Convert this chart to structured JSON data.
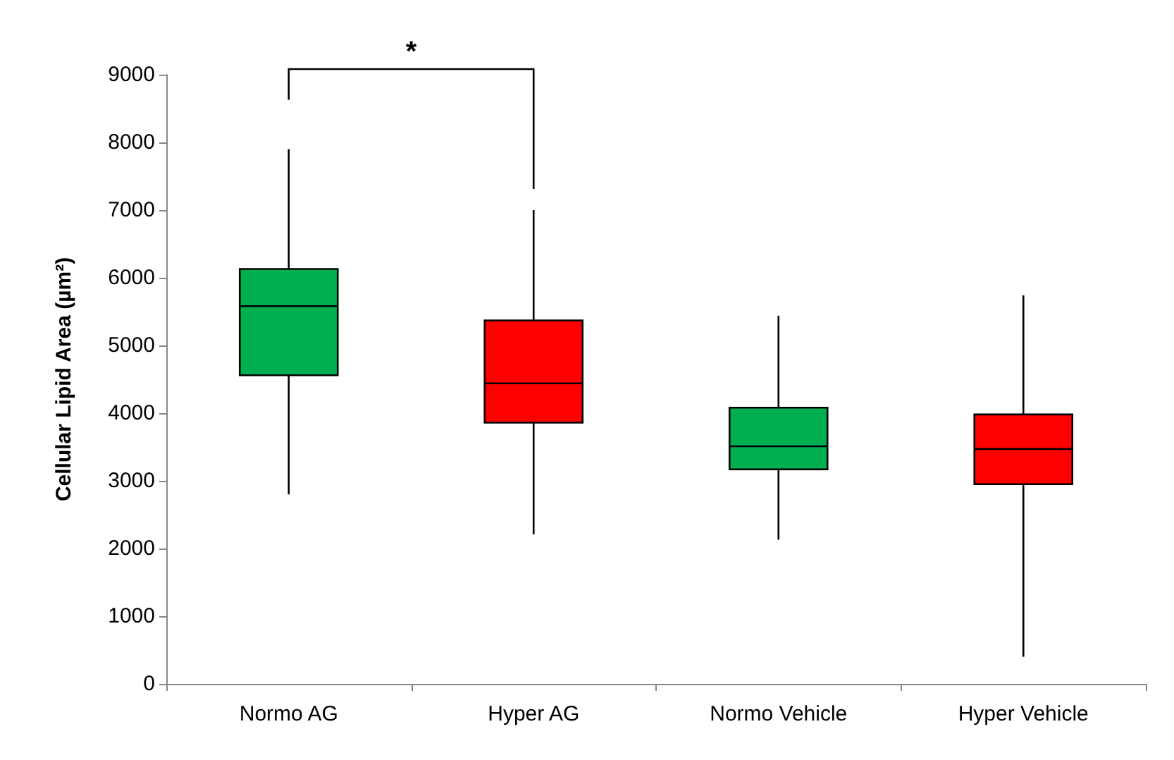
{
  "chart_data": {
    "type": "box",
    "ylabel": "Cellular Lipid Area (µm²)",
    "categories": [
      "Normo AG",
      "Hyper AG",
      "Normo Vehicle",
      "Hyper Vehicle"
    ],
    "colors": [
      "#00b050",
      "#ff0000",
      "#00b050",
      "#ff0000"
    ],
    "boxes": [
      {
        "low": 2800,
        "q1": 4560,
        "median": 5580,
        "q3": 6130,
        "high": 7900
      },
      {
        "low": 2210,
        "q1": 3860,
        "median": 4440,
        "q3": 5370,
        "high": 7000
      },
      {
        "low": 2130,
        "q1": 3170,
        "median": 3510,
        "q3": 4080,
        "high": 5440
      },
      {
        "low": 400,
        "q1": 2950,
        "median": 3470,
        "q3": 3980,
        "high": 5740
      }
    ],
    "ylim": [
      0,
      9000
    ],
    "yticks": [
      0,
      1000,
      2000,
      3000,
      4000,
      5000,
      6000,
      7000,
      8000,
      9000
    ],
    "grid": false,
    "annotations": [
      "*"
    ]
  }
}
